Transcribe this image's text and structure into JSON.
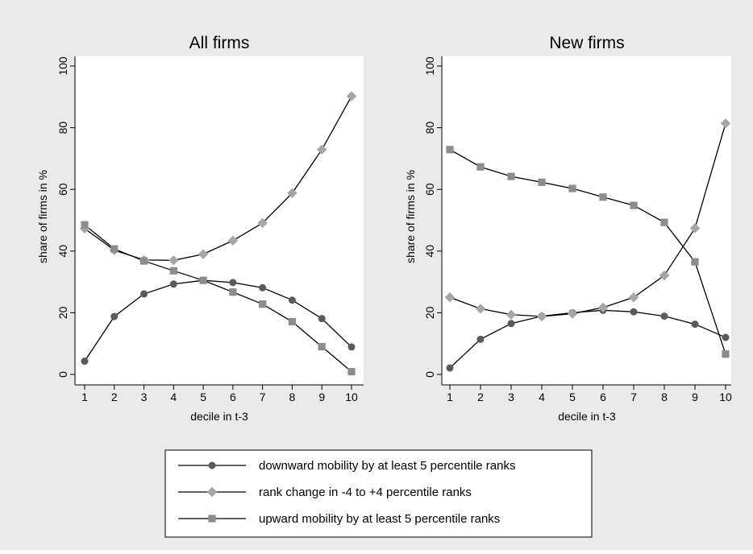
{
  "chart_data": [
    {
      "type": "line",
      "title": "All firms",
      "xlabel": "decile in t-3",
      "ylabel": "share of firms in %",
      "x": [
        1,
        2,
        3,
        4,
        5,
        6,
        7,
        8,
        9,
        10
      ],
      "xticks": [
        "1",
        "2",
        "3",
        "4",
        "5",
        "6",
        "7",
        "8",
        "9",
        "10"
      ],
      "yticks": [
        "0",
        "20",
        "40",
        "60",
        "80",
        "100"
      ],
      "ylim": [
        0,
        100
      ],
      "grid": false,
      "series": [
        {
          "name": "downward mobility by at least 5 percentile ranks",
          "marker": "circle",
          "color": "#5a5a5a",
          "values": [
            4.3,
            18.8,
            26.1,
            29.3,
            30.5,
            29.8,
            28.1,
            24.1,
            18.1,
            8.9
          ]
        },
        {
          "name": "rank change in -4 to +4 percentile ranks",
          "marker": "diamond",
          "color": "#a6a6a6",
          "values": [
            47.3,
            40.3,
            37.1,
            37.0,
            39.0,
            43.4,
            49.1,
            58.8,
            72.9,
            90.2
          ]
        },
        {
          "name": "upward mobility by at least 5 percentile ranks",
          "marker": "square",
          "color": "#8c8c8c",
          "values": [
            48.5,
            40.7,
            36.8,
            33.6,
            30.5,
            26.7,
            22.8,
            17.1,
            9.0,
            0.9
          ]
        }
      ]
    },
    {
      "type": "line",
      "title": "New firms",
      "xlabel": "decile in t-3",
      "ylabel": "share of firms in %",
      "x": [
        1,
        2,
        3,
        4,
        5,
        6,
        7,
        8,
        9,
        10
      ],
      "xticks": [
        "1",
        "2",
        "3",
        "4",
        "5",
        "6",
        "7",
        "8",
        "9",
        "10"
      ],
      "yticks": [
        "0",
        "20",
        "40",
        "60",
        "80",
        "100"
      ],
      "ylim": [
        0,
        100
      ],
      "grid": false,
      "series": [
        {
          "name": "downward mobility by at least 5 percentile ranks",
          "marker": "circle",
          "color": "#5a5a5a",
          "values": [
            2.1,
            11.4,
            16.5,
            18.9,
            20.0,
            20.8,
            20.3,
            18.9,
            16.3,
            12.0
          ]
        },
        {
          "name": "rank change in -4 to +4 percentile ranks",
          "marker": "diamond",
          "color": "#a6a6a6",
          "values": [
            25.0,
            21.3,
            19.4,
            18.8,
            19.7,
            21.7,
            25.0,
            32.1,
            47.4,
            81.4
          ]
        },
        {
          "name": "upward mobility by at least 5 percentile ranks",
          "marker": "square",
          "color": "#8c8c8c",
          "values": [
            72.9,
            67.3,
            64.2,
            62.3,
            60.3,
            57.5,
            54.8,
            49.3,
            36.5,
            6.6
          ]
        }
      ]
    }
  ],
  "legend": {
    "placement": "bottom",
    "items": [
      {
        "label": "downward mobility by at least 5 percentile ranks",
        "marker": "circle",
        "color": "#5a5a5a"
      },
      {
        "label": "rank change in -4 to +4 percentile ranks",
        "marker": "diamond",
        "color": "#a6a6a6"
      },
      {
        "label": "upward mobility by at least 5 percentile ranks",
        "marker": "square",
        "color": "#8c8c8c"
      }
    ]
  },
  "colors": {
    "outer_background": "#eaeaea",
    "plot_background": "#ffffff",
    "line": "#000000"
  }
}
